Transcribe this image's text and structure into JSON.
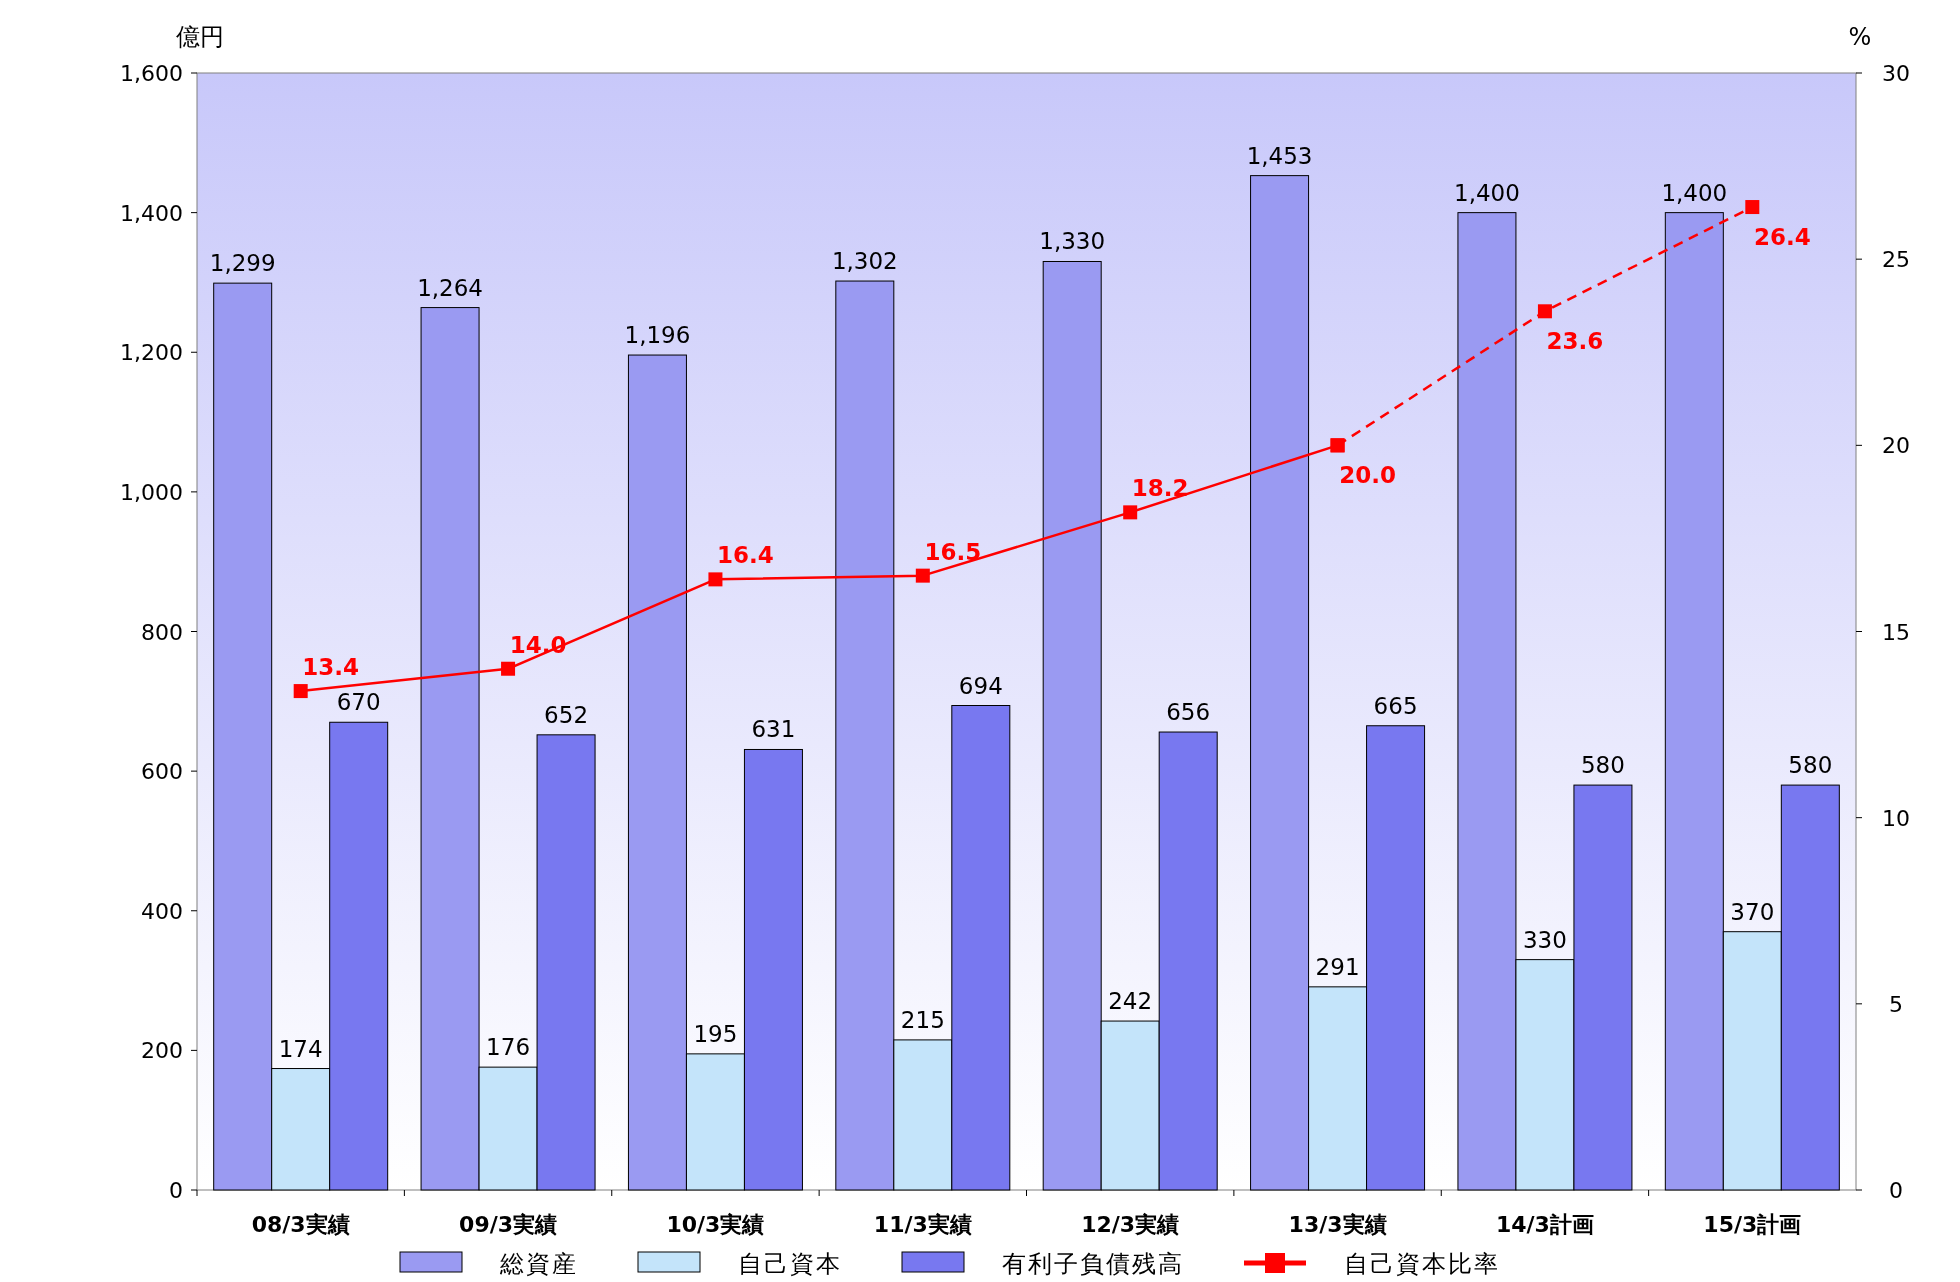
{
  "chart_data": {
    "type": "bar",
    "ylabel": "億円",
    "y2label": "%",
    "categories": [
      "08/3実績",
      "09/3実績",
      "10/3実績",
      "11/3実績",
      "12/3実績",
      "13/3実績",
      "14/3計画",
      "15/3計画"
    ],
    "series": [
      {
        "name": "総資産",
        "color": "#9a9af2",
        "values": [
          1299,
          1264,
          1196,
          1302,
          1330,
          1453,
          1400,
          1400
        ],
        "value_labels": [
          "1,299",
          "1,264",
          "1,196",
          "1,302",
          "1,330",
          "1,453",
          "1,400",
          "1,400"
        ]
      },
      {
        "name": "自己資本",
        "color": "#c4e4fa",
        "values": [
          174,
          176,
          195,
          215,
          242,
          291,
          330,
          370
        ],
        "value_labels": [
          "174",
          "176",
          "195",
          "215",
          "242",
          "291",
          "330",
          "370"
        ]
      },
      {
        "name": "有利子負債残高",
        "color": "#7878f0",
        "values": [
          670,
          652,
          631,
          694,
          656,
          665,
          580,
          580
        ],
        "value_labels": [
          "670",
          "652",
          "631",
          "694",
          "656",
          "665",
          "580",
          "580"
        ]
      },
      {
        "name": "自己資本比率",
        "type": "line",
        "axis": "y2",
        "color": "#ff0000",
        "marker": "square",
        "line_style": "solid",
        "values": [
          13.4,
          14.0,
          16.4,
          16.5,
          18.2,
          20.0,
          null,
          null
        ],
        "value_labels": [
          "13.4",
          "14.0",
          "16.4",
          "16.5",
          "18.2",
          "20.0",
          null,
          null
        ]
      },
      {
        "type": "line",
        "axis": "y2",
        "color": "#ff0000",
        "marker": "square",
        "line_style": "dashed",
        "values": [
          null,
          null,
          null,
          null,
          null,
          20.0,
          23.6,
          26.4
        ],
        "value_labels": [
          null,
          null,
          null,
          null,
          null,
          null,
          "23.6",
          "26.4"
        ]
      }
    ],
    "ylim": [
      0,
      1600
    ],
    "yticks": [
      0,
      {
        "value": 200,
        "label": "200"
      },
      {
        "value": 400,
        "label": "400"
      },
      {
        "value": 600,
        "label": "600"
      },
      {
        "value": 800,
        "label": "800"
      },
      {
        "value": 1000,
        "label": "1,000"
      },
      {
        "value": 1200,
        "label": "1,200"
      },
      {
        "value": 1400,
        "label": "1,400"
      },
      {
        "value": 1600,
        "label": "1,600"
      }
    ],
    "y2lim": [
      0,
      30
    ],
    "y2ticks": [
      0,
      5,
      10,
      15,
      20,
      25,
      30
    ],
    "legend": "bottom",
    "grid": false
  }
}
